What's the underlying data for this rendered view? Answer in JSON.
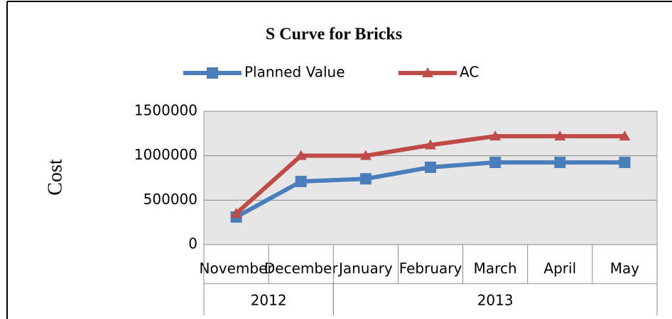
{
  "chart_data": {
    "type": "line",
    "title": "S Curve for Bricks",
    "y_label": "Cost",
    "categories": [
      "November",
      "December",
      "January",
      "February",
      "March",
      "April",
      "May"
    ],
    "category_groups": [
      {
        "label": "2012",
        "count": 2
      },
      {
        "label": "2013",
        "count": 5
      }
    ],
    "series": [
      {
        "name": "Planned Value",
        "color": "#4a7ebb",
        "marker": "square",
        "values": [
          310000,
          710000,
          740000,
          870000,
          925000,
          925000,
          925000
        ]
      },
      {
        "name": "AC",
        "color": "#be4b48",
        "marker": "triangle",
        "values": [
          350000,
          1000000,
          1000000,
          1120000,
          1220000,
          1220000,
          1220000
        ]
      }
    ],
    "ylim": [
      0,
      1500000
    ],
    "yticks": [
      0,
      500000,
      1000000,
      1500000
    ],
    "grid": true,
    "legend": "top"
  }
}
